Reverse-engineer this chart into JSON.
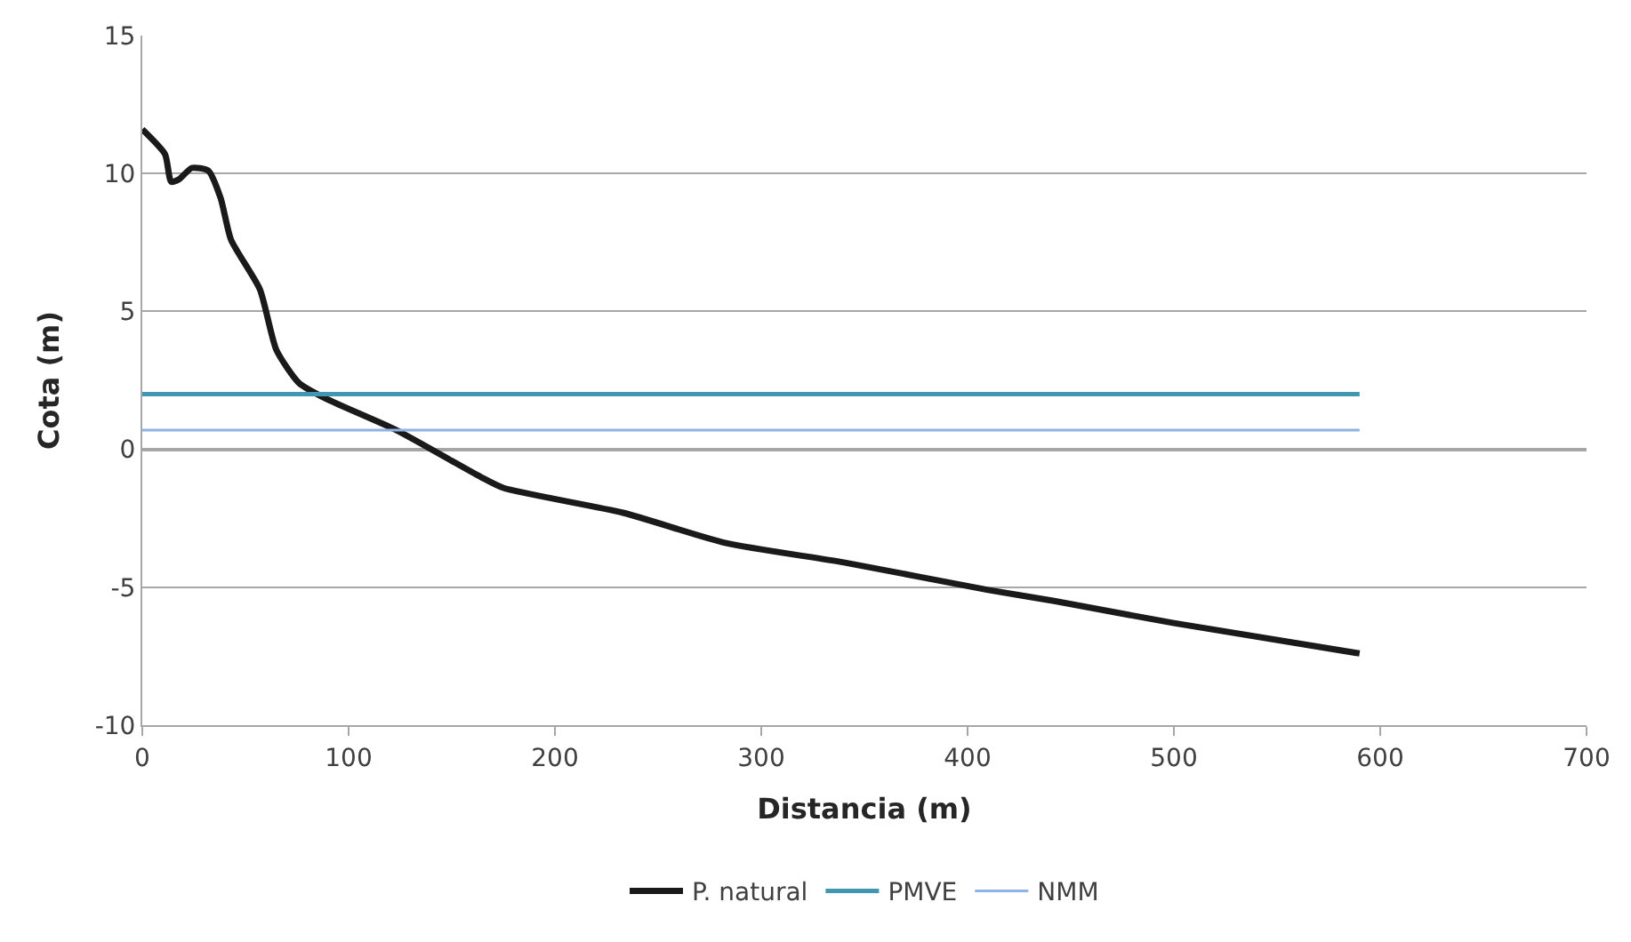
{
  "chart_data": {
    "type": "line",
    "xlabel": "Distancia (m)",
    "ylabel": "Cota (m)",
    "xlim": [
      0,
      700
    ],
    "xticks": [
      0,
      100,
      200,
      300,
      400,
      500,
      600,
      700
    ],
    "ylim": [
      -10,
      15
    ],
    "yticks": [
      -10,
      -5,
      0,
      5,
      10,
      15
    ],
    "grid": "y",
    "legend": "bottom",
    "marker": "none",
    "line_style": "solid",
    "series": [
      {
        "name": "P. natural",
        "color": "#1a1a1a",
        "x": [
          0,
          11,
          14,
          18,
          24,
          32,
          38,
          43,
          57,
          65,
          76,
          90,
          123,
          164,
          175,
          233,
          283,
          340,
          410,
          442,
          500,
          590
        ],
        "values": [
          11.6,
          10.7,
          9.7,
          9.8,
          10.2,
          10.1,
          9.1,
          7.6,
          5.8,
          3.6,
          2.4,
          1.8,
          0.7,
          -1.0,
          -1.4,
          -2.3,
          -3.4,
          -4.1,
          -5.1,
          -5.5,
          -6.3,
          -7.4
        ]
      },
      {
        "name": "PMVE",
        "color": "#3f97b1",
        "x": [
          0,
          590
        ],
        "values": [
          2,
          2
        ]
      },
      {
        "name": "NMM",
        "color": "#8fb4e3",
        "x": [
          0,
          590
        ],
        "values": [
          0.7,
          0.7
        ]
      }
    ]
  }
}
